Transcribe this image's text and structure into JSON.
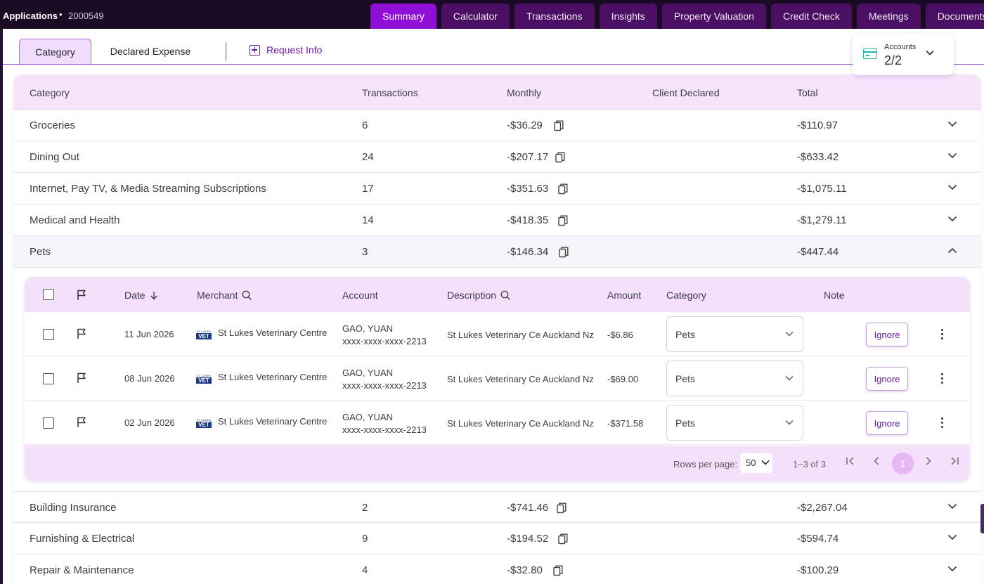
{
  "app": {
    "title": "Applications",
    "separator": "•",
    "id": "2000549"
  },
  "tabs": [
    {
      "label": "Summary",
      "active": true
    },
    {
      "label": "Calculator"
    },
    {
      "label": "Transactions"
    },
    {
      "label": "Insights"
    },
    {
      "label": "Property Valuation"
    },
    {
      "label": "Credit Check"
    },
    {
      "label": "Meetings"
    },
    {
      "label": "Documents"
    }
  ],
  "subtabs": {
    "category": "Category",
    "declared": "Declared Expense",
    "request_info": "Request Info"
  },
  "accounts": {
    "label": "Accounts",
    "value": "2/2"
  },
  "table": {
    "headers": {
      "category": "Category",
      "transactions": "Transactions",
      "monthly": "Monthly",
      "client_declared": "Client Declared",
      "total": "Total"
    },
    "rows_top": [
      {
        "category": "Groceries",
        "transactions": "6",
        "monthly": "-$36.29",
        "total": "-$110.97"
      },
      {
        "category": "Dining Out",
        "transactions": "24",
        "monthly": "-$207.17",
        "total": "-$633.42"
      },
      {
        "category": "Internet, Pay TV, & Media Streaming Subscriptions",
        "transactions": "17",
        "monthly": "-$351.63",
        "total": "-$1,075.11"
      },
      {
        "category": "Medical and Health",
        "transactions": "14",
        "monthly": "-$418.35",
        "total": "-$1,279.11"
      },
      {
        "category": "Pets",
        "transactions": "3",
        "monthly": "-$146.34",
        "total": "-$447.44"
      }
    ],
    "rows_bottom": [
      {
        "category": "Building Insurance",
        "transactions": "2",
        "monthly": "-$741.46",
        "total": "-$2,267.04"
      },
      {
        "category": "Furnishing & Electrical",
        "transactions": "9",
        "monthly": "-$194.52",
        "total": "-$594.74"
      },
      {
        "category": "Repair & Maintenance",
        "transactions": "4",
        "monthly": "-$32.80",
        "total": "-$100.29"
      }
    ]
  },
  "nested": {
    "headers": {
      "date": "Date",
      "merchant": "Merchant",
      "account": "Account",
      "description": "Description",
      "amount": "Amount",
      "category": "Category",
      "note": "Note"
    },
    "logo": {
      "top": "ST LUKES",
      "main": "VET"
    },
    "rows": [
      {
        "date": "11 Jun 2026",
        "merchant": "St Lukes Veterinary Centre",
        "account_name": "GAO, YUAN",
        "account_number": "xxxx-xxxx-xxxx-2213",
        "description": "St Lukes Veterinary Ce Auckland Nz",
        "amount": "-$6.86",
        "category": "Pets",
        "ignore": "Ignore"
      },
      {
        "date": "08 Jun 2026",
        "merchant": "St Lukes Veterinary Centre",
        "account_name": "GAO, YUAN",
        "account_number": "xxxx-xxxx-xxxx-2213",
        "description": "St Lukes Veterinary Ce Auckland Nz",
        "amount": "-$69.00",
        "category": "Pets",
        "ignore": "Ignore"
      },
      {
        "date": "02 Jun 2026",
        "merchant": "St Lukes Veterinary Centre",
        "account_name": "GAO, YUAN",
        "account_number": "xxxx-xxxx-xxxx-2213",
        "description": "St Lukes Veterinary Ce Auckland Nz",
        "amount": "-$371.58",
        "category": "Pets",
        "ignore": "Ignore"
      }
    ],
    "footer": {
      "rows_per_page_label": "Rows per page:",
      "rows_per_page": "50",
      "range": "1–3 of 3",
      "page": "1"
    }
  },
  "colors": {
    "topbar": "#1b0a24",
    "tab": "#4a0f63",
    "tab_active": "#8f0fd6",
    "header_bg": "#f5e4fc",
    "accent": "#6a1a9a",
    "accounts_icon": "#1fb6b0"
  }
}
